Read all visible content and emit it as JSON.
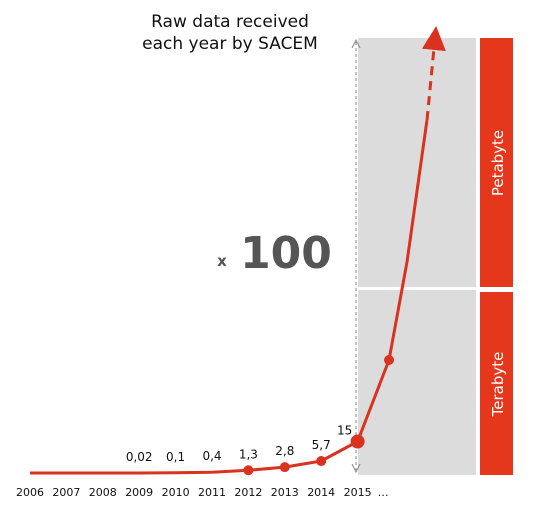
{
  "chart_data": {
    "type": "line",
    "title_lines": [
      "Raw data received",
      "each year by SACEM"
    ],
    "categories": [
      "2006",
      "2007",
      "2008",
      "2009",
      "2010",
      "2011",
      "2012",
      "2013",
      "2014",
      "2015"
    ],
    "x_tail_label": "…",
    "values": [
      0,
      0,
      0,
      0.02,
      0.1,
      0.4,
      1.3,
      2.8,
      5.7,
      15
    ],
    "value_labels": [
      "",
      "",
      "",
      "0,02",
      "0,1",
      "0,4",
      "1,3",
      "2,8",
      "5,7",
      "15"
    ],
    "marker_years": [
      "2012",
      "2013",
      "2014",
      "2015"
    ],
    "multiplier_prefix": "x",
    "multiplier_value": "100",
    "scale_bands": [
      {
        "label": "Terabyte",
        "range": "lower"
      },
      {
        "label": "Petabyte",
        "range": "upper"
      }
    ],
    "projection": "exponential growth after 2015, continuing into the Petabyte range (dashed arrow)",
    "colors": {
      "line": "#d9321e",
      "band": "#e4371c",
      "projection_area": "#dcdcdc",
      "multiplier": "#555555"
    }
  }
}
